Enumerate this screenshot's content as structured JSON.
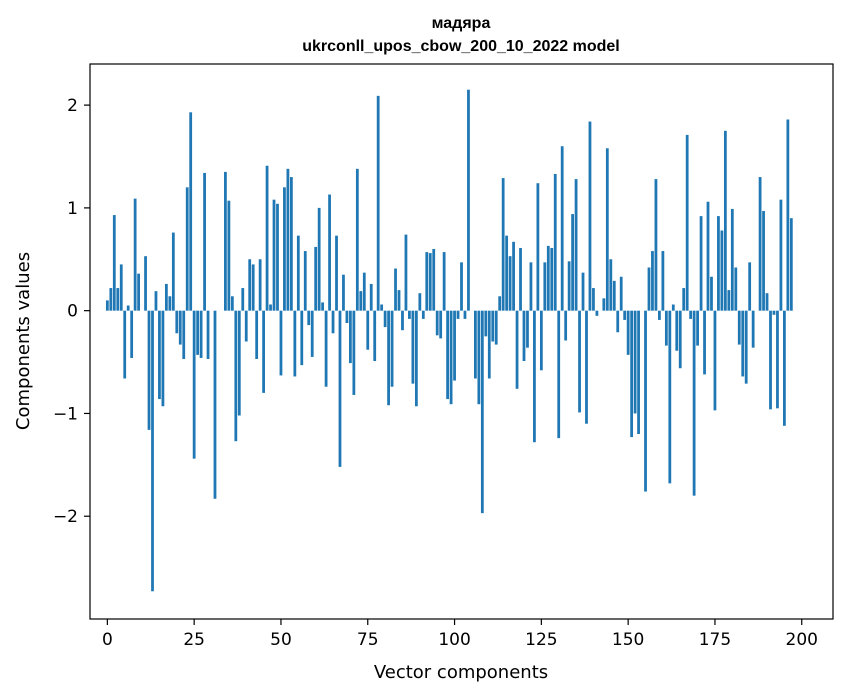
{
  "chart_data": {
    "type": "bar",
    "title_line1": "мадяра",
    "title_line2": "ukrconll_upos_cbow_200_10_2022 model",
    "xlabel": "Vector components",
    "ylabel": "Components values",
    "xlim": [
      -5,
      209
    ],
    "ylim": [
      -3.0,
      2.4
    ],
    "xticks": [
      0,
      25,
      50,
      75,
      100,
      125,
      150,
      175,
      200
    ],
    "yticks": [
      -2,
      -1,
      0,
      1,
      2
    ],
    "color": "#1f77b4",
    "values": [
      0.1,
      0.22,
      0.93,
      0.22,
      0.45,
      -0.66,
      0.05,
      -0.46,
      1.09,
      0.36,
      0.0,
      0.53,
      -1.16,
      -2.73,
      0.19,
      -0.86,
      -0.93,
      0.26,
      0.14,
      0.76,
      -0.22,
      -0.33,
      -0.47,
      1.2,
      1.93,
      -1.44,
      -0.43,
      -0.46,
      1.34,
      -0.47,
      0.0,
      -1.83,
      0.0,
      0.0,
      1.35,
      1.07,
      0.14,
      -1.27,
      -1.02,
      0.22,
      -0.3,
      0.5,
      0.45,
      -0.47,
      0.5,
      -0.8,
      1.41,
      0.06,
      1.08,
      1.04,
      -0.63,
      1.2,
      1.38,
      1.3,
      -0.64,
      0.73,
      -0.53,
      0.58,
      -0.14,
      -0.45,
      0.62,
      1.0,
      0.08,
      -0.74,
      1.13,
      -0.22,
      0.73,
      -1.52,
      0.35,
      -0.12,
      -0.51,
      -0.82,
      1.38,
      0.19,
      0.37,
      -0.38,
      0.26,
      -0.49,
      2.09,
      0.06,
      -0.16,
      -0.92,
      -0.74,
      0.41,
      0.2,
      -0.19,
      0.74,
      -0.08,
      -0.71,
      -0.93,
      0.17,
      -0.08,
      0.57,
      0.56,
      0.6,
      -0.24,
      -0.27,
      0.57,
      -0.86,
      -0.91,
      -0.68,
      -0.08,
      0.47,
      -0.08,
      2.15,
      0.0,
      -0.66,
      -0.91,
      -1.97,
      -0.25,
      -0.66,
      -0.3,
      -0.33,
      0.14,
      1.29,
      0.73,
      0.53,
      0.67,
      -0.76,
      0.61,
      -0.49,
      -0.36,
      0.47,
      -1.28,
      1.24,
      -0.58,
      0.47,
      0.63,
      0.61,
      1.33,
      -1.24,
      1.6,
      -0.29,
      0.48,
      0.94,
      1.28,
      -0.99,
      0.37,
      -1.1,
      1.84,
      0.22,
      -0.05,
      0.0,
      0.12,
      1.58,
      0.5,
      0.29,
      -0.21,
      0.33,
      -0.09,
      -0.43,
      -1.23,
      -1.0,
      -1.2,
      0.0,
      -1.76,
      0.42,
      0.58,
      1.28,
      -0.09,
      0.58,
      -0.34,
      -1.68,
      0.06,
      -0.39,
      -0.56,
      0.22,
      1.71,
      -0.08,
      -1.8,
      -0.34,
      0.92,
      -0.62,
      1.06,
      0.33,
      -0.97,
      0.92,
      0.78,
      1.75,
      0.2,
      0.99,
      0.42,
      -0.33,
      -0.64,
      -0.71,
      0.47,
      -0.36,
      0.0,
      1.3,
      0.97,
      0.17,
      -0.96,
      -0.04,
      -0.95,
      1.08,
      -1.12,
      1.86,
      0.9
    ]
  }
}
